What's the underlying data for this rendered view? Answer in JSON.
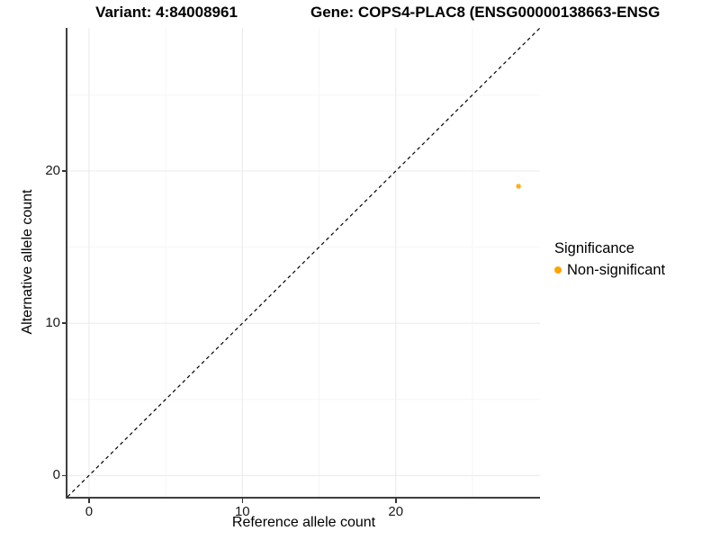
{
  "chart_data": {
    "type": "scatter",
    "title_left": "Variant: 4:84008961",
    "title_right": "Gene: COPS4-PLAC8 (ENSG00000138663-ENSG",
    "xlabel": "Reference allele count",
    "ylabel": "Alternative allele count",
    "xlim": [
      -1.4,
      29.4
    ],
    "ylim": [
      -1.4,
      29.4
    ],
    "x_ticks": [
      0,
      10,
      20
    ],
    "y_ticks": [
      0,
      10,
      20
    ],
    "x_minor_ticks": [
      5,
      15,
      25
    ],
    "y_minor_ticks": [
      5,
      15,
      25
    ],
    "grid": true,
    "grid_major_color": "#ebebeb",
    "grid_minor_color": "#f5f5f5",
    "axis_color": "#3f3f3f",
    "reference_line": {
      "type": "identity y=x",
      "style": "dashed",
      "color": "#000000"
    },
    "series": [
      {
        "name": "Non-significant",
        "color": "#FFA500",
        "points": [
          {
            "x": 28,
            "y": 19
          }
        ]
      }
    ],
    "legend": {
      "title": "Significance",
      "position": "right",
      "items": [
        {
          "label": "Non-significant",
          "color": "#FFA500"
        }
      ]
    }
  }
}
